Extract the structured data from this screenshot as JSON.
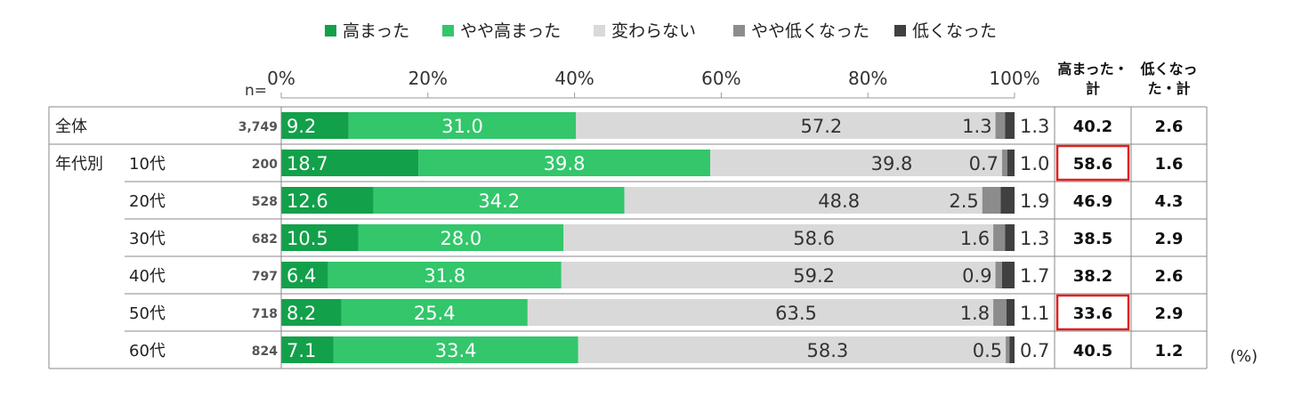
{
  "chart_data": {
    "type": "bar",
    "stacked": "horizontal-100%",
    "legend_position": "top",
    "legend": [
      {
        "name": "高まった",
        "color": "#13a04a"
      },
      {
        "name": "やや高まった",
        "color": "#33c66b"
      },
      {
        "name": "変わらない",
        "color": "#d9d9d9"
      },
      {
        "name": "やや低くなった",
        "color": "#8c8c8c"
      },
      {
        "name": "低くなった",
        "color": "#404040"
      }
    ],
    "x_ticks": [
      "0%",
      "20%",
      "40%",
      "60%",
      "80%",
      "100%"
    ],
    "xlim": [
      0,
      100
    ],
    "n_label": "n=",
    "group_label": "年代別",
    "unit_label": "(%)",
    "col_high_label": [
      "高まった・",
      "計"
    ],
    "col_low_label": [
      "低くなっ",
      "た・計"
    ],
    "rows": [
      {
        "label": "全体",
        "n": "3,749",
        "values": [
          9.2,
          31.0,
          57.2,
          1.3,
          1.3
        ],
        "high_total": "40.2",
        "low_total": "2.6",
        "highlight": false
      },
      {
        "label": "10代",
        "n": "200",
        "values": [
          18.7,
          39.8,
          39.8,
          0.7,
          1.0
        ],
        "high_total": "58.6",
        "low_total": "1.6",
        "highlight": true
      },
      {
        "label": "20代",
        "n": "528",
        "values": [
          12.6,
          34.2,
          48.8,
          2.5,
          1.9
        ],
        "high_total": "46.9",
        "low_total": "4.3",
        "highlight": false
      },
      {
        "label": "30代",
        "n": "682",
        "values": [
          10.5,
          28.0,
          58.6,
          1.6,
          1.3
        ],
        "high_total": "38.5",
        "low_total": "2.9",
        "highlight": false
      },
      {
        "label": "40代",
        "n": "797",
        "values": [
          6.4,
          31.8,
          59.2,
          0.9,
          1.7
        ],
        "high_total": "38.2",
        "low_total": "2.6",
        "highlight": false
      },
      {
        "label": "50代",
        "n": "718",
        "values": [
          8.2,
          25.4,
          63.5,
          1.8,
          1.1
        ],
        "high_total": "33.6",
        "low_total": "2.9",
        "highlight": true
      },
      {
        "label": "60代",
        "n": "824",
        "values": [
          7.1,
          33.4,
          58.3,
          0.5,
          0.7
        ],
        "high_total": "40.5",
        "low_total": "1.2",
        "highlight": false
      }
    ]
  }
}
